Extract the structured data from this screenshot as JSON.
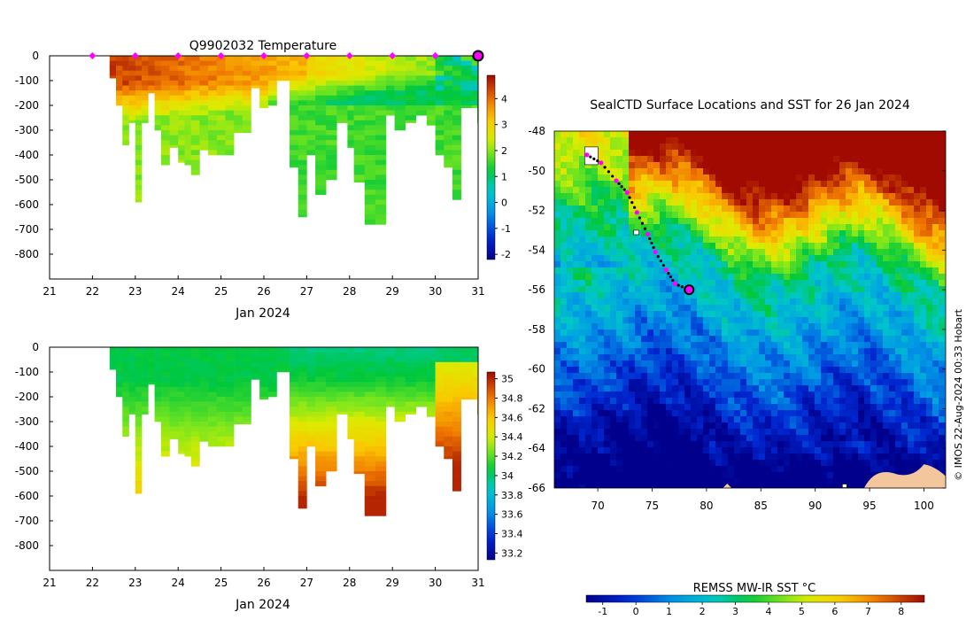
{
  "chart_data": [
    {
      "type": "heatmap",
      "title": "Q9902032  Temperature",
      "xlabel": "Jan 2024",
      "x_ticks": [
        "21",
        "22",
        "23",
        "24",
        "25",
        "26",
        "27",
        "28",
        "29",
        "30",
        "31"
      ],
      "xlim": [
        21,
        31
      ],
      "y_ticks": [
        "0",
        "-100",
        "-200",
        "-300",
        "-400",
        "-500",
        "-600",
        "-700",
        "-800"
      ],
      "ylim": [
        -900,
        0
      ],
      "colorbar_ticks": [
        "4",
        "3",
        "2",
        "1",
        "0",
        "-1",
        "-2"
      ],
      "colorbar_range": [
        -2.2,
        4.9
      ],
      "surface_markers_day": [
        22,
        23,
        24,
        25,
        26,
        27,
        28,
        29,
        30
      ],
      "last_position_day": 31,
      "profiles": [
        {
          "day": 22.4,
          "depth": 90
        },
        {
          "day": 22.55,
          "depth": 200
        },
        {
          "day": 22.7,
          "depth": 360
        },
        {
          "day": 22.85,
          "depth": 270
        },
        {
          "day": 23.0,
          "depth": 590
        },
        {
          "day": 23.15,
          "depth": 270
        },
        {
          "day": 23.3,
          "depth": 150
        },
        {
          "day": 23.45,
          "depth": 300
        },
        {
          "day": 23.6,
          "depth": 440
        },
        {
          "day": 23.8,
          "depth": 370
        },
        {
          "day": 24.0,
          "depth": 430
        },
        {
          "day": 24.15,
          "depth": 440
        },
        {
          "day": 24.3,
          "depth": 480
        },
        {
          "day": 24.5,
          "depth": 380
        },
        {
          "day": 24.7,
          "depth": 400
        },
        {
          "day": 24.9,
          "depth": 400
        },
        {
          "day": 25.1,
          "depth": 400
        },
        {
          "day": 25.3,
          "depth": 310
        },
        {
          "day": 25.5,
          "depth": 310
        },
        {
          "day": 25.7,
          "depth": 130
        },
        {
          "day": 25.9,
          "depth": 210
        },
        {
          "day": 26.1,
          "depth": 200
        },
        {
          "day": 26.3,
          "depth": 100
        },
        {
          "day": 26.6,
          "depth": 450
        },
        {
          "day": 26.8,
          "depth": 650
        },
        {
          "day": 27.0,
          "depth": 400
        },
        {
          "day": 27.2,
          "depth": 560
        },
        {
          "day": 27.45,
          "depth": 500
        },
        {
          "day": 27.7,
          "depth": 270
        },
        {
          "day": 27.95,
          "depth": 370
        },
        {
          "day": 28.1,
          "depth": 510
        },
        {
          "day": 28.35,
          "depth": 680
        },
        {
          "day": 28.6,
          "depth": 680
        },
        {
          "day": 28.85,
          "depth": 240
        },
        {
          "day": 29.05,
          "depth": 300
        },
        {
          "day": 29.3,
          "depth": 270
        },
        {
          "day": 29.55,
          "depth": 240
        },
        {
          "day": 29.8,
          "depth": 280
        },
        {
          "day": 30.0,
          "depth": 400
        },
        {
          "day": 30.2,
          "depth": 450
        },
        {
          "day": 30.4,
          "depth": 580
        },
        {
          "day": 30.6,
          "depth": 210
        },
        {
          "day": 30.85,
          "depth": 210
        },
        {
          "day": 30.98,
          "depth": 270
        }
      ]
    },
    {
      "type": "heatmap",
      "title": "",
      "xlabel": "Jan 2024",
      "x_ticks": [
        "21",
        "22",
        "23",
        "24",
        "25",
        "26",
        "27",
        "28",
        "29",
        "30",
        "31"
      ],
      "xlim": [
        21,
        31
      ],
      "y_ticks": [
        "0",
        "-100",
        "-200",
        "-300",
        "-400",
        "-500",
        "-600",
        "-700",
        "-800"
      ],
      "ylim": [
        -900,
        0
      ],
      "colorbar_ticks": [
        "35",
        "34.8",
        "34.6",
        "34.4",
        "34.2",
        "34",
        "33.8",
        "33.6",
        "33.4",
        "33.2"
      ],
      "colorbar_range": [
        33.13,
        35.07
      ]
    },
    {
      "type": "heatmap",
      "title": "SealCTD Surface Locations and SST for 26 Jan 2024",
      "colorbar_label": "REMSS MW-IR SST °C",
      "x_ticks": [
        "70",
        "75",
        "80",
        "85",
        "90",
        "95",
        "100"
      ],
      "xlim": [
        66,
        102
      ],
      "y_ticks": [
        "-48",
        "-50",
        "-52",
        "-54",
        "-56",
        "-58",
        "-60",
        "-62",
        "-64",
        "-66"
      ],
      "ylim": [
        -66,
        -48
      ],
      "colorbar_ticks": [
        "-1",
        "0",
        "1",
        "2",
        "3",
        "4",
        "5",
        "6",
        "7",
        "8"
      ],
      "colorbar_range": [
        -1.5,
        8.7
      ],
      "track": [
        {
          "lon": 69.0,
          "lat": -49.2
        },
        {
          "lon": 70.3,
          "lat": -49.6
        },
        {
          "lon": 71.7,
          "lat": -50.5
        },
        {
          "lon": 72.7,
          "lat": -51.1
        },
        {
          "lon": 73.6,
          "lat": -52.1
        },
        {
          "lon": 74.6,
          "lat": -53.2
        },
        {
          "lon": 75.3,
          "lat": -54.1
        },
        {
          "lon": 76.3,
          "lat": -55.0
        },
        {
          "lon": 77.1,
          "lat": -55.7
        },
        {
          "lon": 78.4,
          "lat": -56.0
        }
      ],
      "last_position": {
        "lon": 78.4,
        "lat": -56.0
      }
    }
  ],
  "credit": "© IMOS 22-Aug-2024 00:33 Hobart"
}
